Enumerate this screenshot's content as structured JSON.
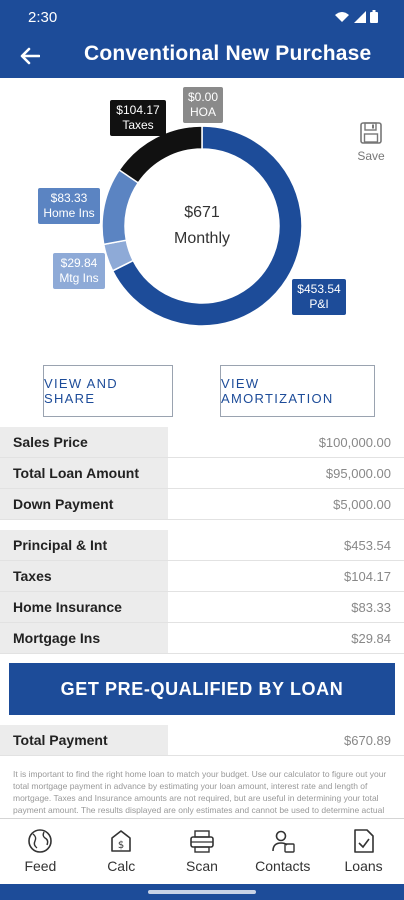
{
  "status_bar": {
    "time": "2:30"
  },
  "app_bar": {
    "title": "Conventional New Purchase"
  },
  "chart_data": {
    "type": "pie",
    "style": "donut",
    "categories": [
      "P&I",
      "Mtg Ins",
      "Home Ins",
      "Taxes",
      "HOA"
    ],
    "values": [
      453.54,
      29.84,
      83.33,
      104.17,
      0.0
    ],
    "value_labels": [
      "$453.54",
      "$29.84",
      "$83.33",
      "$104.17",
      "$0.00"
    ],
    "colors": [
      "#1d4c99",
      "#8eaad7",
      "#5b84c2",
      "#111111",
      "#8a8a8a"
    ],
    "center_amount": "$671",
    "center_label": "Monthly"
  },
  "save": {
    "label": "Save"
  },
  "buttons": {
    "share": "VIEW AND SHARE",
    "amortization": "VIEW AMORTIZATION"
  },
  "loan_rows": [
    {
      "label": "Sales Price",
      "value": "$100,000.00"
    },
    {
      "label": "Total Loan Amount",
      "value": "$95,000.00"
    },
    {
      "label": "Down Payment",
      "value": "$5,000.00"
    }
  ],
  "payment_rows": [
    {
      "label": "Principal & Int",
      "value": "$453.54"
    },
    {
      "label": "Taxes",
      "value": "$104.17"
    },
    {
      "label": "Home Insurance",
      "value": "$83.33"
    },
    {
      "label": "Mortgage Ins",
      "value": "$29.84"
    }
  ],
  "cta": {
    "label": "GET PRE-QUALIFIED BY LOAN"
  },
  "total": {
    "label": "Total Payment",
    "value": "$670.89"
  },
  "disclaimer": "It is important to find the right home loan to match your budget. Use our calculator to figure out your total mortgage payment in advance by estimating your loan amount, interest rate and length of mortgage. Taxes and Insurance amounts are not required, but are useful in determining your total payment amount. The results displayed are only estimates and cannot be used to determine actual",
  "nav": [
    {
      "label": "Feed",
      "icon": "globe-icon"
    },
    {
      "label": "Calc",
      "icon": "calculator-icon"
    },
    {
      "label": "Scan",
      "icon": "scanner-icon"
    },
    {
      "label": "Contacts",
      "icon": "contacts-icon"
    },
    {
      "label": "Loans",
      "icon": "document-check-icon"
    }
  ]
}
